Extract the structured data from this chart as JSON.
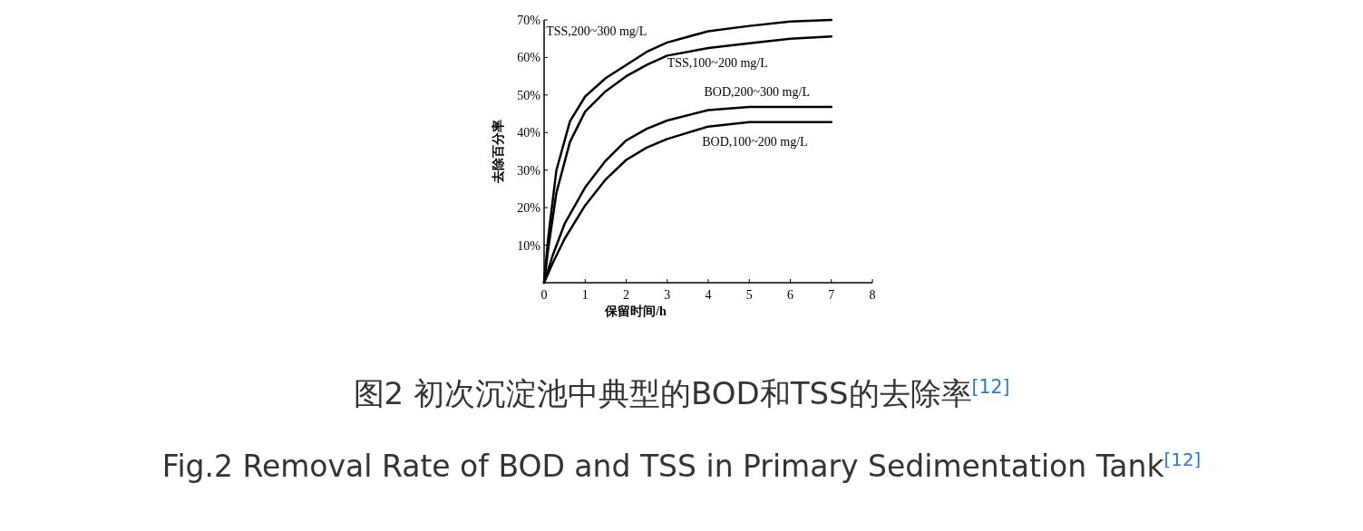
{
  "chart_data": {
    "type": "line",
    "title": "图2 初次沉淀池中典型的BOD和TSS的去除率$^{[12]}$",
    "subtitle": "Fig.2 Removal Rate of BOD and TSS in Primary Sedimentation Tank$^{[12]}$",
    "xlabel": "保留时间/h",
    "ylabel": "去除百分率",
    "xlim": [
      0,
      8
    ],
    "xticks": [
      0,
      1,
      2,
      3,
      4,
      5,
      6,
      7,
      8
    ],
    "ylim": [
      0,
      70
    ],
    "yticks": [
      {
        "value": 10,
        "label": "10%"
      },
      {
        "value": 20,
        "label": "20%"
      },
      {
        "value": 30,
        "label": "30%"
      },
      {
        "value": 40,
        "label": "40%"
      },
      {
        "value": 50,
        "label": "50%"
      },
      {
        "value": 60,
        "label": "60%"
      },
      {
        "value": 70,
        "label": "70%"
      }
    ],
    "grid": false,
    "line_style": "solid",
    "series": [
      {
        "name": "TSS,200~300 mg/L",
        "color": "#000000",
        "x": [
          0,
          0.1,
          0.3,
          0.63,
          1,
          1.5,
          2,
          2.5,
          3,
          4,
          5,
          6,
          7
        ],
        "values": [
          0,
          12,
          30,
          43,
          49.6,
          54.5,
          58,
          61.5,
          64,
          67,
          68.4,
          69.6,
          70
        ]
      },
      {
        "name": "TSS,100~200 mg/L",
        "color": "#000000",
        "x": [
          0,
          0.1,
          0.3,
          0.63,
          1,
          1.5,
          2,
          2.5,
          3,
          4,
          5,
          6,
          7
        ],
        "values": [
          0,
          9,
          24,
          37.5,
          45.6,
          51,
          55,
          58,
          60.5,
          62.5,
          63.8,
          65,
          65.6
        ]
      },
      {
        "name": "BOD,200~300 mg/L",
        "color": "#000000",
        "x": [
          0,
          0.2,
          0.5,
          1,
          1.5,
          2,
          2.5,
          3,
          4,
          5,
          6,
          7
        ],
        "values": [
          0,
          7,
          15.7,
          25.4,
          32.5,
          37.9,
          41,
          43.2,
          46,
          46.8,
          46.8,
          46.8
        ]
      },
      {
        "name": "BOD,100~200 mg/L",
        "color": "#000000",
        "x": [
          0,
          0.2,
          0.5,
          1,
          1.5,
          2,
          2.5,
          3,
          4,
          5,
          6,
          7
        ],
        "values": [
          0,
          5,
          11.7,
          20.6,
          27.5,
          32.7,
          36,
          38.3,
          41.6,
          42.8,
          42.8,
          42.8
        ]
      }
    ]
  }
}
